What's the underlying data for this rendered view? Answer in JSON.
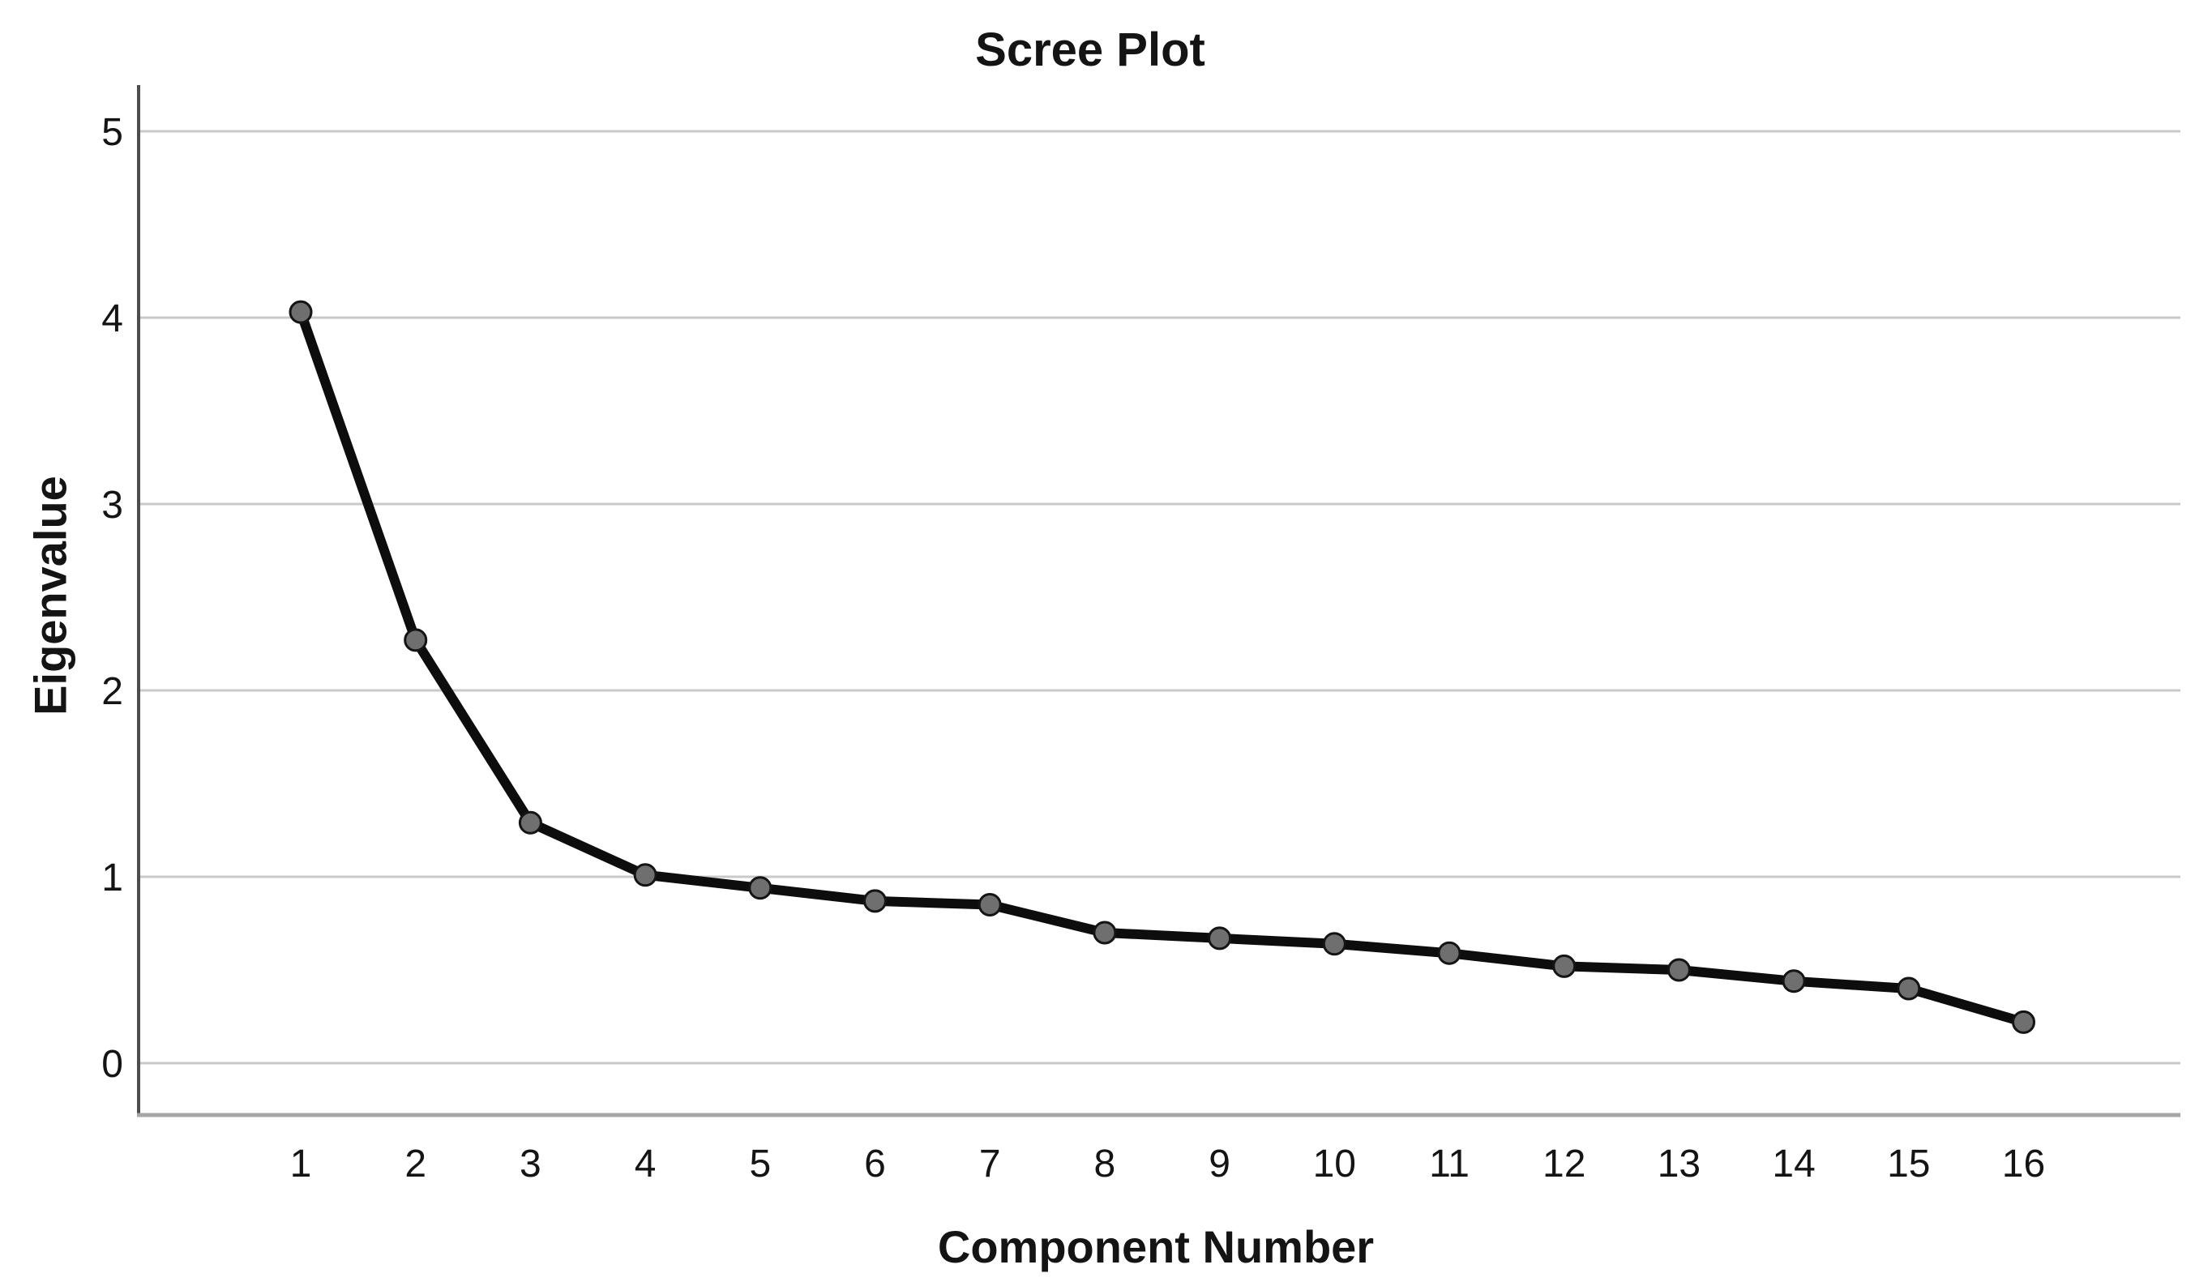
{
  "chart_data": {
    "type": "line",
    "title": "Scree Plot",
    "xlabel": "Component Number",
    "ylabel": "Eigenvalue",
    "categories": [
      1,
      2,
      3,
      4,
      5,
      6,
      7,
      8,
      9,
      10,
      11,
      12,
      13,
      14,
      15,
      16
    ],
    "series": [
      {
        "name": "Eigenvalue",
        "values": [
          4.03,
          2.27,
          1.29,
          1.01,
          0.94,
          0.87,
          0.85,
          0.7,
          0.67,
          0.64,
          0.59,
          0.52,
          0.5,
          0.44,
          0.4,
          0.22
        ]
      }
    ],
    "yticks": [
      0,
      1,
      2,
      3,
      4,
      5
    ],
    "ylim": [
      -0.28,
      5.25
    ],
    "grid": "horizontal",
    "legend": "none",
    "marker": "circle",
    "colors": {
      "line": "#0d0d0d",
      "marker_fill": "#6f6f6f",
      "marker_stroke": "#141414",
      "gridline": "#c9c9c9",
      "axis_line": "#4d4d4d",
      "frame_line": "#a6a6a6",
      "text": "#141414",
      "background": "#ffffff"
    }
  }
}
